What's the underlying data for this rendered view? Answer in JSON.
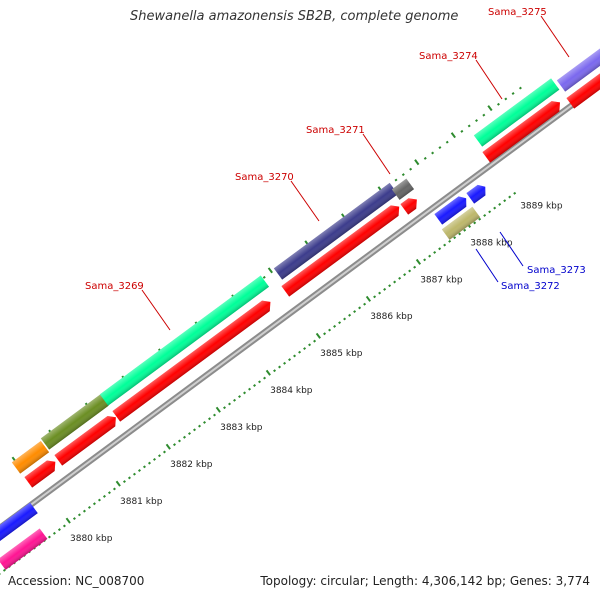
{
  "title": "Shewanella amazonensis SB2B, complete genome",
  "accession": "Accession: NC_008700",
  "summary": "Topology: circular; Length: 4,306,142 bp; Genes: 3,774",
  "colors": {
    "backbone": "#8c8c8c",
    "cds_red": "#ff0000",
    "tick_green": "#2e8b2e",
    "label_red": "#cc0000",
    "label_blue": "#0000cc"
  },
  "scale_labels": [
    "3880 kbp",
    "3881 kbp",
    "3882 kbp",
    "3883 kbp",
    "3884 kbp",
    "3885 kbp",
    "3886 kbp",
    "3887 kbp",
    "3888 kbp",
    "3889 kbp"
  ],
  "gene_labels": [
    {
      "text": "Sama_3275",
      "color": "red"
    },
    {
      "text": "Sama_3274",
      "color": "red"
    },
    {
      "text": "Sama_3271",
      "color": "red"
    },
    {
      "text": "Sama_3270",
      "color": "red"
    },
    {
      "text": "Sama_3269",
      "color": "red"
    },
    {
      "text": "Sama_3273",
      "color": "blue"
    },
    {
      "text": "Sama_3272",
      "color": "blue"
    }
  ]
}
